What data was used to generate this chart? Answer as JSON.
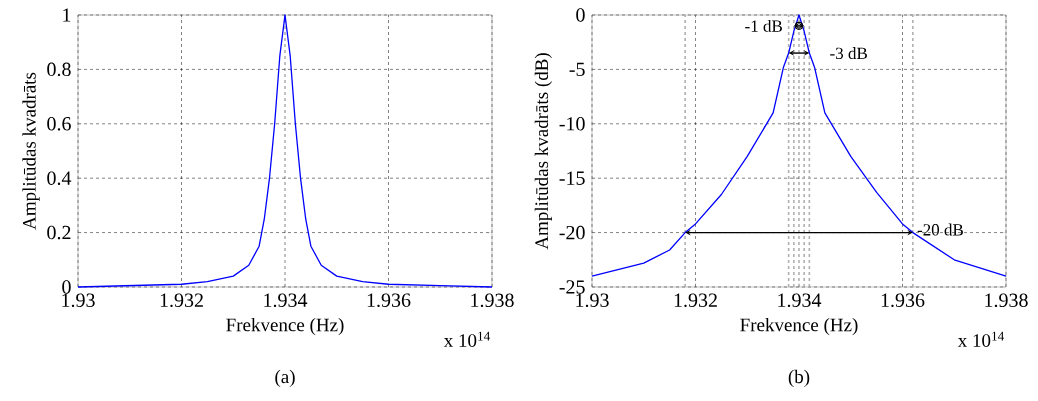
{
  "chart_data": [
    {
      "type": "line",
      "xlabel": "Frekvence (Hz)",
      "ylabel": "Amplitūdas kvadrāts",
      "x": [
        1.93,
        1.931,
        1.932,
        1.9325,
        1.933,
        1.9333,
        1.9335,
        1.9336,
        1.9337,
        1.9338,
        1.9339,
        1.934,
        1.9341,
        1.9342,
        1.9343,
        1.9344,
        1.9345,
        1.9347,
        1.935,
        1.9355,
        1.936,
        1.937,
        1.938
      ],
      "series": [
        {
          "color": "#0000ff",
          "values": [
            0,
            0.005,
            0.01,
            0.02,
            0.04,
            0.08,
            0.15,
            0.25,
            0.4,
            0.6,
            0.85,
            1,
            0.85,
            0.6,
            0.4,
            0.25,
            0.15,
            0.08,
            0.04,
            0.02,
            0.01,
            0.005,
            0
          ]
        }
      ],
      "xlim": [
        1.93,
        1.938
      ],
      "ylim": [
        0,
        1
      ],
      "xticks": [
        1.93,
        1.932,
        1.934,
        1.936,
        1.938
      ],
      "yticks": [
        0,
        0.2,
        0.4,
        0.6,
        0.8,
        1
      ],
      "grid": true,
      "annotations": [
        "x 10$^{14}$",
        "(a)"
      ]
    },
    {
      "type": "line",
      "xlabel": "Frekvence (Hz)",
      "ylabel": "Amplitūdas kvadrāts (dB)",
      "x": [
        1.93,
        1.931,
        1.9315,
        1.9318,
        1.932,
        1.9325,
        1.933,
        1.9335,
        1.9337,
        1.9338,
        1.9339,
        1.934,
        1.9341,
        1.9342,
        1.9343,
        1.9345,
        1.935,
        1.9355,
        1.936,
        1.9362,
        1.937,
        1.938
      ],
      "series": [
        {
          "color": "#0000ff",
          "values": [
            -24,
            -22.8,
            -21.6,
            -20,
            -19.2,
            -16.5,
            -13,
            -9,
            -4.8,
            -3.5,
            -1.5,
            0,
            -1.5,
            -3.5,
            -4.8,
            -9,
            -13,
            -16.3,
            -19.2,
            -20,
            -22.5,
            -24
          ]
        }
      ],
      "xlim": [
        1.93,
        1.938
      ],
      "ylim": [
        -25,
        0
      ],
      "xticks": [
        1.93,
        1.932,
        1.934,
        1.936,
        1.938
      ],
      "yticks": [
        0,
        -5,
        -10,
        -15,
        -20,
        -25
      ],
      "grid": true,
      "ref_lines": [
        {
          "axis": "x",
          "value": 1.9339,
          "color": "#b0b0b0",
          "line_style": "dashed"
        },
        {
          "axis": "x",
          "value": 1.9341,
          "color": "#b0b0b0",
          "line_style": "dashed"
        },
        {
          "axis": "x",
          "value": 1.9338,
          "color": "#b0b0b0",
          "line_style": "dashed"
        },
        {
          "axis": "x",
          "value": 1.9342,
          "color": "#b0b0b0",
          "line_style": "dashed"
        },
        {
          "axis": "x",
          "value": 1.9318,
          "color": "#b0b0b0",
          "line_style": "dashed"
        },
        {
          "axis": "x",
          "value": 1.9362,
          "color": "#b0b0b0",
          "line_style": "dashed"
        }
      ],
      "annotations": [
        {
          "text": "-1 dB",
          "x": 1.934,
          "y": -1
        },
        {
          "text": "-3 dB",
          "x": 1.9342,
          "y": -3.5
        },
        {
          "text": "-20 dB",
          "x": 1.9362,
          "y": -20
        },
        "x 10$^{14}$",
        "(b)"
      ]
    }
  ]
}
